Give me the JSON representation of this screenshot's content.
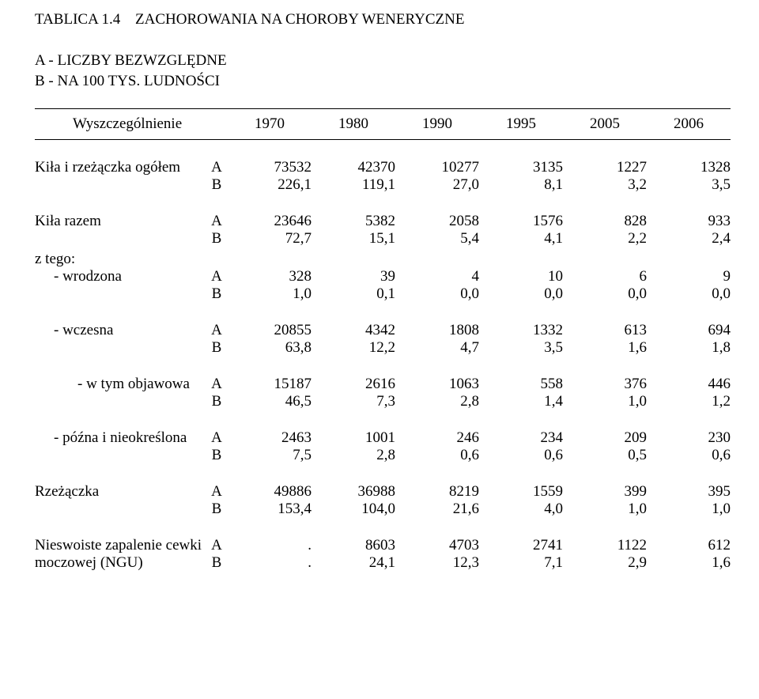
{
  "title_prefix": "TABLICA 1.4",
  "title_rest": "ZACHOROWANIA NA CHOROBY WENERYCZNE",
  "legend_a": "A - LICZBY BEZWZGLĘDNE",
  "legend_b": "B - NA 100 TYS. LUDNOŚCI",
  "header": {
    "wys": "Wyszczególnienie",
    "years": [
      "1970",
      "1980",
      "1990",
      "1995",
      "2005",
      "2006"
    ]
  },
  "rows": [
    {
      "label": "Kiła i rzeżączka ogółem",
      "indent": 0,
      "A": [
        "73532",
        "42370",
        "10277",
        "3135",
        "1227",
        "1328"
      ],
      "B": [
        "226,1",
        "119,1",
        "27,0",
        "8,1",
        "3,2",
        "3,5"
      ]
    },
    {
      "label": "Kiła  razem",
      "indent": 0,
      "A": [
        "23646",
        "5382",
        "2058",
        "1576",
        "828",
        "933"
      ],
      "B": [
        "72,7",
        "15,1",
        "5,4",
        "4,1",
        "2,2",
        "2,4"
      ]
    },
    {
      "label": "z tego:",
      "indent": 0,
      "header_only": true
    },
    {
      "label": "  - wrodzona",
      "indent": 1,
      "A": [
        "328",
        "39",
        "4",
        "10",
        "6",
        "9"
      ],
      "B": [
        "1,0",
        "0,1",
        "0,0",
        "0,0",
        "0,0",
        "0,0"
      ]
    },
    {
      "label": "  - wczesna",
      "indent": 1,
      "A": [
        "20855",
        "4342",
        "1808",
        "1332",
        "613",
        "694"
      ],
      "B": [
        "63,8",
        "12,2",
        "4,7",
        "3,5",
        "1,6",
        "1,8"
      ]
    },
    {
      "label": "   - w tym objawowa",
      "indent": 2,
      "A": [
        "15187",
        "2616",
        "1063",
        "558",
        "376",
        "446"
      ],
      "B": [
        "46,5",
        "7,3",
        "2,8",
        "1,4",
        "1,0",
        "1,2"
      ]
    },
    {
      "label": "  - późna i nieokreślona",
      "indent": 1,
      "A": [
        "2463",
        "1001",
        "246",
        "234",
        "209",
        "230"
      ],
      "B": [
        "7,5",
        "2,8",
        "0,6",
        "0,6",
        "0,5",
        "0,6"
      ]
    },
    {
      "label": "Rzeżączka",
      "indent": 0,
      "A": [
        "49886",
        "36988",
        "8219",
        "1559",
        "399",
        "395"
      ],
      "B": [
        "153,4",
        "104,0",
        "21,6",
        "4,0",
        "1,0",
        "1,0"
      ]
    },
    {
      "label": "Nieswoiste zapalenie cewki",
      "label2": "moczowej (NGU)",
      "indent": 0,
      "A": [
        ".",
        "8603",
        "4703",
        "2741",
        "1122",
        "612"
      ],
      "B": [
        ".",
        "24,1",
        "12,3",
        "7,1",
        "2,9",
        "1,6"
      ]
    }
  ],
  "ab": {
    "A": "A",
    "B": "B"
  }
}
